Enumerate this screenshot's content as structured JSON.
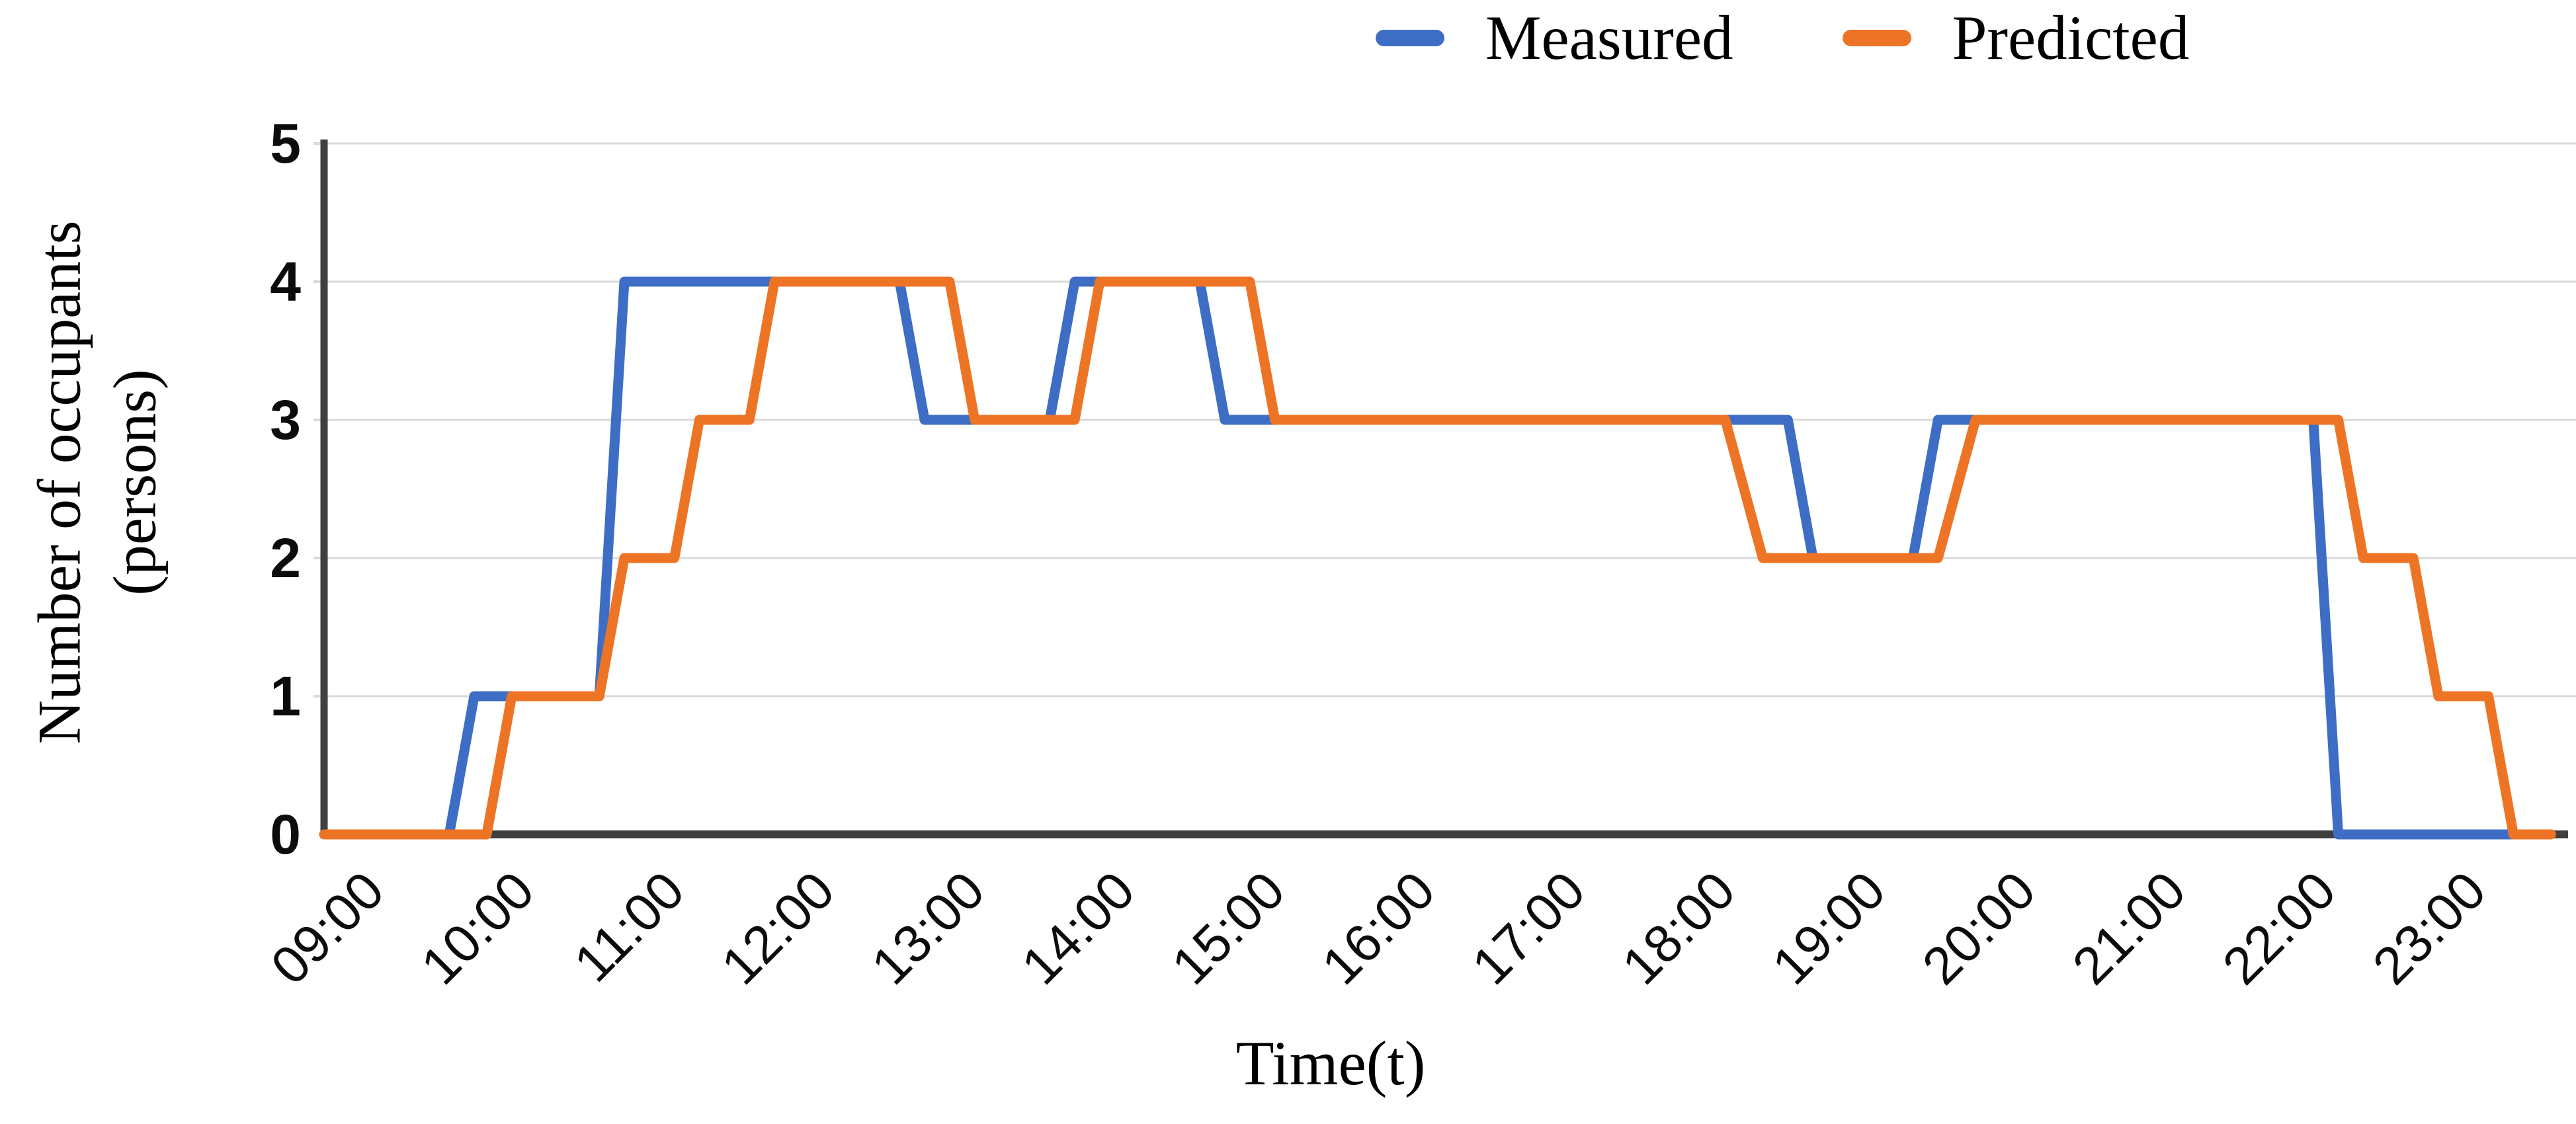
{
  "legend": {
    "items": [
      {
        "label": "Measured",
        "color": "#3E6DC5"
      },
      {
        "label": "Predicted",
        "color": "#EE7425"
      }
    ]
  },
  "axes": {
    "y_title_line1": "Number of occupants",
    "y_title_line2": "(persons)",
    "x_title": "Time(t)",
    "y_ticks": [
      "5",
      "4",
      "3",
      "2",
      "1",
      "0"
    ],
    "x_ticks": [
      "09:00",
      "10:00",
      "11:00",
      "12:00",
      "13:00",
      "14:00",
      "15:00",
      "16:00",
      "17:00",
      "18:00",
      "19:00",
      "20:00",
      "21:00",
      "22:00",
      "23:00"
    ]
  },
  "chart_data": {
    "type": "line",
    "title": "",
    "xlabel": "Time(t)",
    "ylabel": "Number of occupants (persons)",
    "ylim": [
      0,
      5
    ],
    "x_axis": {
      "start": "09:00",
      "end": "24:00",
      "tick_interval_minutes": 60,
      "tick_labels_shown": [
        "09:00",
        "10:00",
        "11:00",
        "12:00",
        "13:00",
        "14:00",
        "15:00",
        "16:00",
        "17:00",
        "18:00",
        "19:00",
        "20:00",
        "21:00",
        "22:00",
        "23:00"
      ]
    },
    "grid": "horizontal gridlines at integers 0-5",
    "legend_position": "top",
    "line_style": "stepped with short ramps, round joins",
    "series": [
      {
        "name": "Measured",
        "color": "#3E6DC5",
        "points": [
          [
            "09:00",
            0
          ],
          [
            "09:50",
            0
          ],
          [
            "10:00",
            1
          ],
          [
            "10:50",
            1
          ],
          [
            "11:00",
            4
          ],
          [
            "12:50",
            4
          ],
          [
            "13:00",
            3
          ],
          [
            "13:50",
            3
          ],
          [
            "14:00",
            4
          ],
          [
            "14:50",
            4
          ],
          [
            "15:00",
            3
          ],
          [
            "18:45",
            3
          ],
          [
            "18:55",
            2
          ],
          [
            "19:35",
            2
          ],
          [
            "19:45",
            3
          ],
          [
            "22:15",
            3
          ],
          [
            "22:25",
            0
          ],
          [
            "23:50",
            0
          ]
        ]
      },
      {
        "name": "Predicted",
        "color": "#EE7425",
        "points": [
          [
            "09:00",
            0
          ],
          [
            "10:05",
            0
          ],
          [
            "10:15",
            1
          ],
          [
            "10:50",
            1
          ],
          [
            "11:00",
            2
          ],
          [
            "11:20",
            2
          ],
          [
            "11:30",
            3
          ],
          [
            "11:50",
            3
          ],
          [
            "12:00",
            4
          ],
          [
            "13:10",
            4
          ],
          [
            "13:20",
            3
          ],
          [
            "14:00",
            3
          ],
          [
            "14:10",
            4
          ],
          [
            "15:10",
            4
          ],
          [
            "15:20",
            3
          ],
          [
            "18:20",
            3
          ],
          [
            "18:35",
            2
          ],
          [
            "19:45",
            2
          ],
          [
            "20:00",
            3
          ],
          [
            "22:25",
            3
          ],
          [
            "22:35",
            2
          ],
          [
            "22:55",
            2
          ],
          [
            "23:05",
            1
          ],
          [
            "23:25",
            1
          ],
          [
            "23:35",
            0
          ],
          [
            "23:50",
            0
          ]
        ]
      }
    ]
  },
  "colors": {
    "grid": "#d9d9d9",
    "axis": "#3f3f3f",
    "text": "#000000"
  }
}
